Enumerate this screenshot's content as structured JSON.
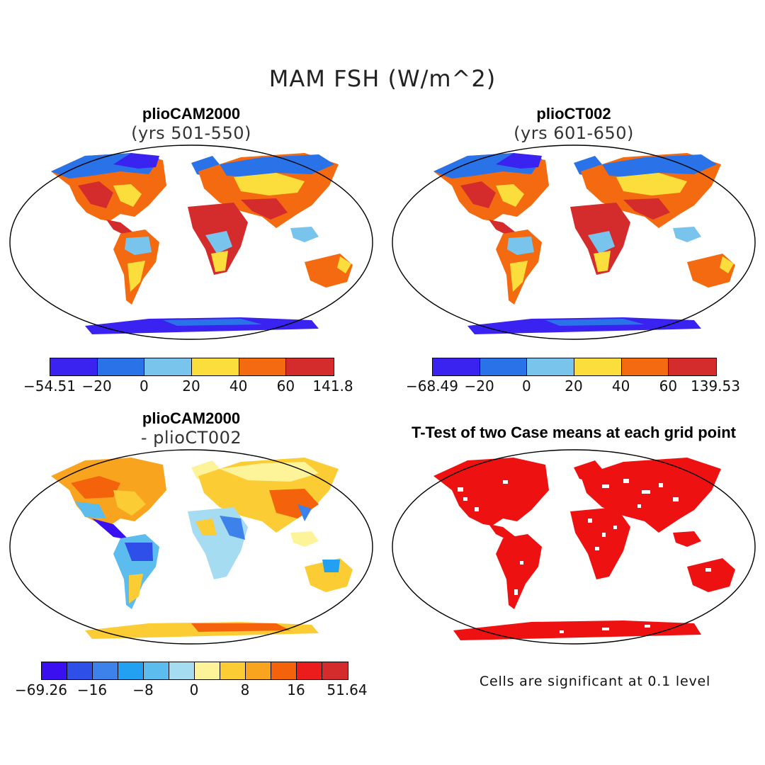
{
  "figure": {
    "title": "MAM FSH (W/m^2)",
    "significance_note": "Cells are significant at 0.1 level"
  },
  "panels": [
    {
      "name": "plioCAM2000",
      "title": "plioCAM2000",
      "subtitle": "(yrs 501-550)",
      "colorbar": {
        "colors": [
          "#3a22f0",
          "#2a72e8",
          "#78c4ec",
          "#fbde3c",
          "#f36a10",
          "#d42c2c"
        ],
        "labels": [
          "-54.51",
          "-20",
          "0",
          "20",
          "40",
          "60",
          "141.8"
        ]
      }
    },
    {
      "name": "plioCT002",
      "title": "plioCT002",
      "subtitle": "(yrs 601-650)",
      "colorbar": {
        "colors": [
          "#3a22f0",
          "#2a72e8",
          "#78c4ec",
          "#fbde3c",
          "#f36a10",
          "#d42c2c"
        ],
        "labels": [
          "-68.49",
          "-20",
          "0",
          "20",
          "40",
          "60",
          "139.53"
        ]
      }
    },
    {
      "name": "difference",
      "title": "plioCAM2000",
      "subtitle": "- plioCT002",
      "colorbar": {
        "colors": [
          "#3a10f0",
          "#2e50e8",
          "#3c82ea",
          "#22a0f2",
          "#5cbcee",
          "#a6dcf2",
          "#fdf49a",
          "#fbcc34",
          "#f8a41e",
          "#f4620c",
          "#ec1c1c",
          "#d42c2c"
        ],
        "labels": [
          "-69.26",
          "-16",
          "-8",
          "0",
          "8",
          "16",
          "51.64"
        ]
      }
    },
    {
      "name": "ttest",
      "title": "T-Test of two Case means at each grid point",
      "color": "#ee1111"
    }
  ]
}
